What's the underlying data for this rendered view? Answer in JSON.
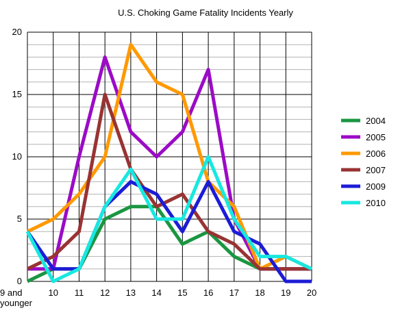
{
  "chart_data": {
    "type": "line",
    "title": "U.S. Choking Game Fatality Incidents Yearly",
    "xlabel": "",
    "ylabel": "",
    "categories": [
      "9 and younger",
      "10",
      "11",
      "12",
      "13",
      "14",
      "15",
      "16",
      "17",
      "18",
      "19",
      "20"
    ],
    "ylim": [
      0,
      20
    ],
    "y_ticks": [
      0,
      5,
      10,
      15,
      20
    ],
    "y_minor_step": 1,
    "grid": true,
    "legend_position": "right",
    "series": [
      {
        "name": "2004",
        "color": "#1a9641",
        "values": [
          0,
          1,
          1,
          5,
          6,
          6,
          3,
          4,
          2,
          1,
          1,
          1
        ]
      },
      {
        "name": "2005",
        "color": "#9b0bc6",
        "values": [
          1,
          1,
          10,
          18,
          12,
          10,
          12,
          17,
          5,
          1,
          1,
          1
        ]
      },
      {
        "name": "2006",
        "color": "#ff9900",
        "values": [
          4,
          5,
          7,
          10,
          19,
          16,
          15,
          8,
          6,
          1,
          2,
          1
        ]
      },
      {
        "name": "2007",
        "color": "#993333",
        "values": [
          1,
          2,
          4,
          15,
          9,
          6,
          7,
          4,
          3,
          1,
          1,
          1
        ]
      },
      {
        "name": "2009",
        "color": "#1c1cd6",
        "values": [
          4,
          1,
          1,
          6,
          8,
          7,
          4,
          8,
          4,
          3,
          0,
          0
        ]
      },
      {
        "name": "2010",
        "color": "#17e8e0",
        "values": [
          4,
          0,
          1,
          6,
          9,
          5,
          5,
          10,
          5,
          2,
          2,
          1
        ]
      }
    ]
  }
}
